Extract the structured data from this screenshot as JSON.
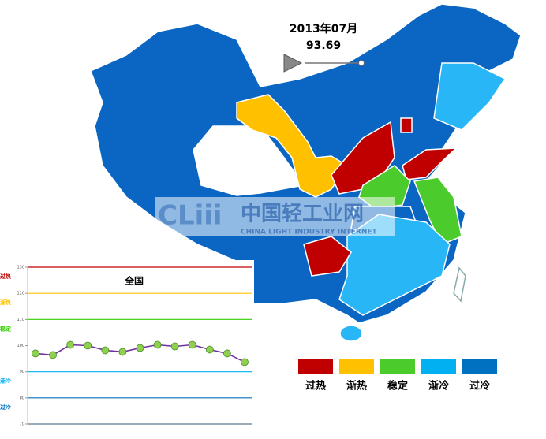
{
  "header": {
    "date": "2013年07月",
    "value": 93.69
  },
  "watermark": {
    "title": "中国轻工业网",
    "subtitle": "CHINA LIGHT INDUSTRY INTERNET"
  },
  "legend": [
    {
      "label": "过热",
      "color": "#c00000"
    },
    {
      "label": "渐热",
      "color": "#ffc000"
    },
    {
      "label": "稳定",
      "color": "#4ccc2c"
    },
    {
      "label": "渐冷",
      "color": "#00b0f0"
    },
    {
      "label": "过冷",
      "color": "#0070c0"
    }
  ],
  "chart_data": {
    "type": "line",
    "title": "全国",
    "categories": [
      null,
      null,
      null,
      null,
      null,
      null,
      null,
      null,
      null,
      null,
      null,
      null,
      null
    ],
    "series": [
      {
        "color": "#7030a0",
        "values": [
          97.0,
          96.4,
          100.3,
          100.0,
          98.2,
          97.6,
          99.1,
          100.3,
          99.7,
          100.3,
          98.5,
          97.0,
          93.69
        ]
      }
    ],
    "ylim": [
      70,
      130
    ],
    "yticks": [
      70,
      80,
      90,
      100,
      110,
      120,
      130
    ],
    "bands": [
      {
        "label": "过热",
        "value": 130,
        "color": "#c00000"
      },
      {
        "label": "渐热",
        "value": 120,
        "color": "#ffc000"
      },
      {
        "label": "稳定",
        "value": 110,
        "color": "#33cc00"
      },
      {
        "label": "渐冷",
        "value": 90,
        "color": "#00b0f0"
      },
      {
        "label": "过冷",
        "value": 80,
        "color": "#0070c0"
      }
    ]
  }
}
